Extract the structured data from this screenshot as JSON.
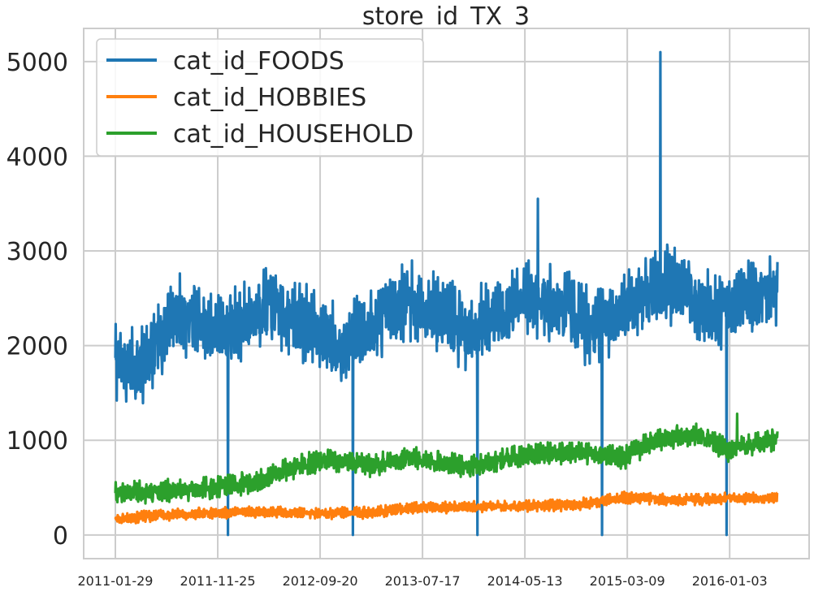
{
  "chart_data": {
    "type": "line",
    "title": "store_id_TX_3",
    "xlabel": "",
    "ylabel": "",
    "x_ticks": [
      "2011-01-29",
      "2011-11-25",
      "2012-09-20",
      "2013-07-17",
      "2014-05-13",
      "2015-03-09",
      "2016-01-03"
    ],
    "x_range": [
      "2011-01-29",
      "2016-05-22"
    ],
    "y_ticks": [
      0,
      1000,
      2000,
      3000,
      4000,
      5000
    ],
    "ylim": [
      -250,
      5350
    ],
    "grid": true,
    "legend_position": "top-left",
    "series": [
      {
        "name": "cat_id_FOODS",
        "color": "#1f77b4",
        "x": [
          "2011-01-29",
          "2011-03-01",
          "2011-04-01",
          "2011-05-01",
          "2011-06-01",
          "2011-07-01",
          "2011-08-01",
          "2011-09-01",
          "2011-10-01",
          "2011-11-01",
          "2011-12-01",
          "2012-01-01",
          "2012-02-01",
          "2012-03-01",
          "2012-04-01",
          "2012-05-01",
          "2012-06-01",
          "2012-07-01",
          "2012-08-01",
          "2012-09-01",
          "2012-10-01",
          "2012-11-01",
          "2012-12-01",
          "2013-01-01",
          "2013-02-01",
          "2013-03-01",
          "2013-04-01",
          "2013-05-01",
          "2013-06-01",
          "2013-07-01",
          "2013-08-01",
          "2013-09-01",
          "2013-10-01",
          "2013-11-01",
          "2013-12-01",
          "2014-01-01",
          "2014-02-01",
          "2014-03-01",
          "2014-04-01",
          "2014-05-01",
          "2014-06-01",
          "2014-07-01",
          "2014-08-01",
          "2014-09-01",
          "2014-10-01",
          "2014-11-01",
          "2014-12-01",
          "2015-01-01",
          "2015-02-01",
          "2015-03-01",
          "2015-04-01",
          "2015-05-01",
          "2015-06-01",
          "2015-07-01",
          "2015-08-01",
          "2015-09-01",
          "2015-10-01",
          "2015-11-01",
          "2015-12-01",
          "2016-01-01",
          "2016-02-01",
          "2016-03-01",
          "2016-04-01",
          "2016-05-01",
          "2016-05-22"
        ],
        "values": [
          1800,
          1750,
          1700,
          1800,
          2000,
          2200,
          2300,
          2250,
          2200,
          2150,
          2100,
          2200,
          2150,
          2300,
          2350,
          2400,
          2300,
          2250,
          2200,
          2150,
          2100,
          2000,
          1950,
          2050,
          2100,
          2200,
          2300,
          2400,
          2450,
          2400,
          2350,
          2300,
          2250,
          2150,
          2100,
          2200,
          2250,
          2300,
          2350,
          2400,
          2450,
          2450,
          2400,
          2350,
          2300,
          2200,
          2150,
          2250,
          2300,
          2350,
          2450,
          2500,
          2550,
          2600,
          2550,
          2500,
          2450,
          2350,
          2300,
          2400,
          2400,
          2450,
          2500,
          2550,
          2550
        ]
      },
      {
        "name": "cat_id_HOBBIES",
        "color": "#ff7f0e",
        "x": [
          "2011-01-29",
          "2011-06-01",
          "2011-11-01",
          "2012-04-01",
          "2012-09-01",
          "2013-02-01",
          "2013-07-01",
          "2013-12-01",
          "2014-05-01",
          "2014-10-01",
          "2015-03-01",
          "2015-08-01",
          "2016-01-01",
          "2016-05-22"
        ],
        "values": [
          160,
          200,
          230,
          240,
          220,
          230,
          280,
          290,
          300,
          310,
          390,
          360,
          380,
          380
        ]
      },
      {
        "name": "cat_id_HOUSEHOLD",
        "color": "#2ca02c",
        "x": [
          "2011-01-29",
          "2011-06-01",
          "2011-11-01",
          "2012-04-01",
          "2012-07-01",
          "2012-10-01",
          "2013-02-01",
          "2013-07-01",
          "2013-12-01",
          "2014-05-01",
          "2014-10-01",
          "2015-03-01",
          "2015-06-01",
          "2015-10-01",
          "2016-01-01",
          "2016-05-22"
        ],
        "values": [
          420,
          450,
          480,
          560,
          700,
          780,
          720,
          800,
          700,
          820,
          870,
          800,
          1000,
          1050,
          880,
          1000
        ]
      }
    ],
    "notable_points": [
      {
        "series": "cat_id_FOODS",
        "x": "2015-06-14",
        "value": 5100
      },
      {
        "series": "cat_id_FOODS",
        "x": "2014-06-20",
        "value": 3550
      },
      {
        "series": "cat_id_FOODS",
        "x": "2011-12-25",
        "value": 0
      },
      {
        "series": "cat_id_FOODS",
        "x": "2012-12-25",
        "value": 0
      },
      {
        "series": "cat_id_FOODS",
        "x": "2013-12-25",
        "value": 0
      },
      {
        "series": "cat_id_FOODS",
        "x": "2014-12-25",
        "value": 0
      },
      {
        "series": "cat_id_FOODS",
        "x": "2015-12-25",
        "value": 0
      },
      {
        "series": "cat_id_HOUSEHOLD",
        "x": "2016-01-25",
        "value": 1280
      }
    ]
  }
}
